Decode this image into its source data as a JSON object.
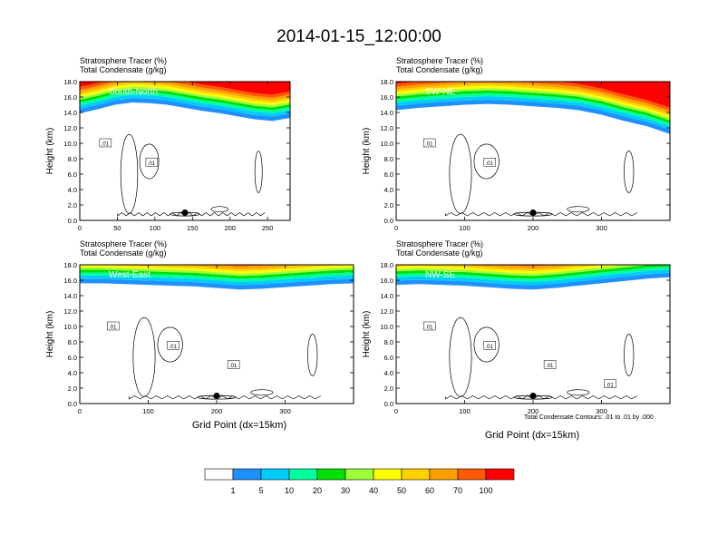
{
  "title": "2014-01-15_12:00:00",
  "chart_data": [
    {
      "type": "heatmap",
      "title_lines": [
        "Stratosphere Tracer   (%)",
        "Total Condensate   (g/kg)"
      ],
      "panel_label": "South-North",
      "ylabel": "Height (km)",
      "xlabel": "",
      "xlim": [
        0,
        280
      ],
      "ylim": [
        0,
        18
      ],
      "xticks": [
        0,
        50,
        100,
        150,
        200,
        250
      ],
      "yticks": [
        "0.0",
        "2.0",
        "4.0",
        "6.0",
        "8.0",
        "10.0",
        "12.0",
        "14.0",
        "16.0",
        "18.0"
      ],
      "tropopause_km": [
        13.9,
        14.4,
        15.0,
        15.3,
        15.2,
        15.0,
        14.6,
        14.2,
        13.9,
        13.5,
        13.1,
        12.9,
        13.3
      ],
      "contour_labels": [
        ".01",
        ".01"
      ],
      "marker": {
        "x": 140,
        "y": 1.0
      },
      "grid": false
    },
    {
      "type": "heatmap",
      "title_lines": [
        "Stratosphere Tracer   (%)",
        "Total Condensate   (g/kg)"
      ],
      "panel_label": "SW-NE",
      "ylabel": "Height (km)",
      "xlabel": "",
      "xlim": [
        0,
        400
      ],
      "ylim": [
        0,
        18
      ],
      "xticks": [
        0,
        100,
        200,
        300
      ],
      "yticks": [
        "0.0",
        "2.0",
        "4.0",
        "6.0",
        "8.0",
        "10.0",
        "12.0",
        "14.0",
        "16.0",
        "18.0"
      ],
      "tropopause_km": [
        14.3,
        14.6,
        14.8,
        15.0,
        15.1,
        15.0,
        14.8,
        14.6,
        14.3,
        13.7,
        12.9,
        12.2,
        11.2
      ],
      "contour_labels": [
        ".01",
        ".01"
      ],
      "marker": {
        "x": 200,
        "y": 1.0
      },
      "grid": false
    },
    {
      "type": "heatmap",
      "title_lines": [
        "Stratosphere Tracer   (%)",
        "Total Condensate   (g/kg)"
      ],
      "panel_label": "West-East",
      "ylabel": "Height (km)",
      "xlabel": "Grid Point (dx=15km)",
      "xlim": [
        0,
        400
      ],
      "ylim": [
        0,
        18
      ],
      "xticks": [
        0,
        100,
        200,
        300
      ],
      "yticks": [
        "0.0",
        "2.0",
        "4.0",
        "6.0",
        "8.0",
        "10.0",
        "12.0",
        "14.0",
        "16.0",
        "18.0"
      ],
      "tropopause_km": [
        15.6,
        15.6,
        15.5,
        15.4,
        15.3,
        15.2,
        15.0,
        14.8,
        14.9,
        15.1,
        15.3,
        15.5,
        15.6
      ],
      "contour_labels": [
        ".01",
        ".01",
        ".01"
      ],
      "marker": {
        "x": 200,
        "y": 1.0
      },
      "grid": false
    },
    {
      "type": "heatmap",
      "title_lines": [
        "Stratosphere Tracer   (%)",
        "Total Condensate   (g/kg)"
      ],
      "panel_label": "NW-SE",
      "ylabel": "Height (km)",
      "xlabel": "Grid Point (dx=15km)",
      "contour_note": "Total Condensate Contours: .01 to .01 by .000",
      "xlim": [
        0,
        400
      ],
      "ylim": [
        0,
        18
      ],
      "xticks": [
        0,
        100,
        200,
        300
      ],
      "yticks": [
        "0.0",
        "2.0",
        "4.0",
        "6.0",
        "8.0",
        "10.0",
        "12.0",
        "14.0",
        "16.0",
        "18.0"
      ],
      "tropopause_km": [
        15.4,
        15.5,
        15.4,
        15.3,
        15.1,
        14.9,
        14.8,
        15.0,
        15.3,
        15.6,
        15.9,
        16.2,
        16.4
      ],
      "contour_labels": [
        ".01",
        ".01",
        ".01",
        ".01"
      ],
      "marker": {
        "x": 200,
        "y": 1.0
      },
      "grid": false
    }
  ],
  "colorbar": {
    "colors": [
      "#ffffff",
      "#1e90ff",
      "#00ccff",
      "#00ff9f",
      "#00e000",
      "#9cff3a",
      "#ffff00",
      "#ffd000",
      "#ffa000",
      "#ff5a00",
      "#ff0000"
    ],
    "labels": [
      "1",
      "5",
      "10",
      "20",
      "30",
      "40",
      "50",
      "60",
      "70",
      "100"
    ]
  }
}
